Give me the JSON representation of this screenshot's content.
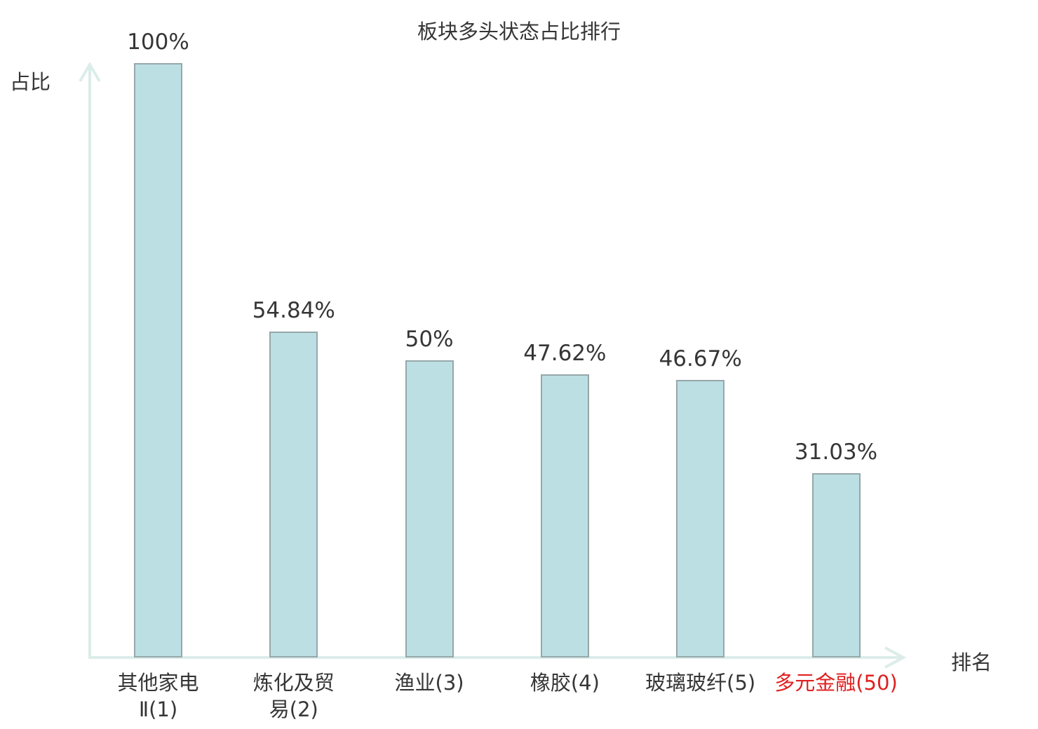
{
  "chart_data": {
    "type": "bar",
    "title": "板块多头状态占比排行",
    "xlabel": "排名",
    "ylabel": "占比",
    "ylim": [
      0,
      100
    ],
    "grid": false,
    "legend": "none",
    "categories": [
      "其他家电Ⅱ(1)",
      "炼化及贸易(2)",
      "渔业(3)",
      "橡胶(4)",
      "玻璃玻纤(5)",
      "多元金融(50)"
    ],
    "values": [
      100,
      54.84,
      50,
      47.62,
      46.67,
      31.03
    ],
    "bars": [
      {
        "category_lines": [
          "其他家电",
          "Ⅱ(1)"
        ],
        "value": 100,
        "value_label": "100%",
        "category_color": "#363636"
      },
      {
        "category_lines": [
          "炼化及贸",
          "易(2)"
        ],
        "value": 54.84,
        "value_label": "54.84%",
        "category_color": "#363636"
      },
      {
        "category_lines": [
          "渔业(3)"
        ],
        "value": 50,
        "value_label": "50%",
        "category_color": "#363636"
      },
      {
        "category_lines": [
          "橡胶(4)"
        ],
        "value": 47.62,
        "value_label": "47.62%",
        "category_color": "#363636"
      },
      {
        "category_lines": [
          "玻璃玻纤(5)"
        ],
        "value": 46.67,
        "value_label": "46.67%",
        "category_color": "#363636"
      },
      {
        "category_lines": [
          "多元金融(50)"
        ],
        "value": 31.03,
        "value_label": "31.03%",
        "category_color": "#e02020"
      }
    ],
    "colors": {
      "bar_fill": "#bcdfe3",
      "bar_border": "#96a7aa",
      "axis": "#dcede9",
      "text": "#363636",
      "highlight": "#e02020"
    }
  }
}
